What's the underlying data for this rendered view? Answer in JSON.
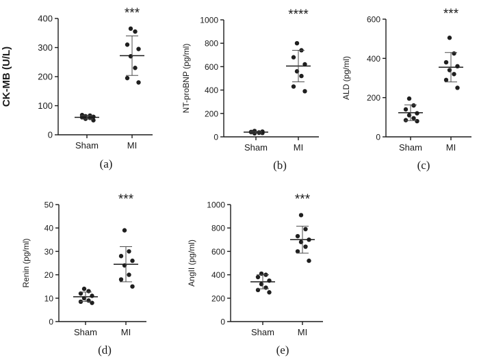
{
  "chart_data": [
    {
      "panel": "a",
      "caption": "(a)",
      "type": "scatter",
      "ylabel": "CK-MB (U/L)",
      "ylim": [
        0,
        400
      ],
      "yticks": [
        0,
        100,
        200,
        300,
        400
      ],
      "categories": [
        "Sham",
        "MI"
      ],
      "significance": "***",
      "series": [
        {
          "name": "Sham",
          "values": [
            55,
            58,
            60,
            62,
            64,
            66,
            68,
            50
          ],
          "mean": 60,
          "sd": 6
        },
        {
          "name": "MI",
          "values": [
            365,
            355,
            310,
            295,
            270,
            230,
            195,
            180
          ],
          "mean": 272,
          "sd": 68
        }
      ]
    },
    {
      "panel": "b",
      "caption": "(b)",
      "type": "scatter",
      "ylabel": "NT-proBNP (pg/ml)",
      "ylim": [
        0,
        1000
      ],
      "yticks": [
        0,
        200,
        400,
        600,
        800,
        1000
      ],
      "categories": [
        "Sham",
        "MI"
      ],
      "significance": "****",
      "series": [
        {
          "name": "Sham",
          "values": [
            30,
            35,
            40,
            45,
            50,
            38,
            42,
            33
          ],
          "mean": 40,
          "sd": 7
        },
        {
          "name": "MI",
          "values": [
            800,
            740,
            680,
            620,
            560,
            520,
            430,
            390
          ],
          "mean": 605,
          "sd": 135
        }
      ]
    },
    {
      "panel": "c",
      "caption": "(c)",
      "type": "scatter",
      "ylabel": "ALD (pg/ml)",
      "ylim": [
        0,
        600
      ],
      "yticks": [
        0,
        200,
        400,
        600
      ],
      "categories": [
        "Sham",
        "MI"
      ],
      "significance": "***",
      "series": [
        {
          "name": "Sham",
          "values": [
            195,
            160,
            140,
            120,
            110,
            95,
            85,
            80
          ],
          "mean": 123,
          "sd": 40
        },
        {
          "name": "MI",
          "values": [
            505,
            425,
            380,
            360,
            340,
            320,
            290,
            250
          ],
          "mean": 355,
          "sd": 75
        }
      ]
    },
    {
      "panel": "d",
      "caption": "(d)",
      "type": "scatter",
      "ylabel": "Renin (pg/ml)",
      "ylim": [
        0,
        50
      ],
      "yticks": [
        0,
        10,
        20,
        30,
        40,
        50
      ],
      "categories": [
        "Sham",
        "MI"
      ],
      "significance": "***",
      "series": [
        {
          "name": "Sham",
          "values": [
            14,
            13,
            12,
            11,
            10,
            9,
            8.5,
            8
          ],
          "mean": 10.6,
          "sd": 2
        },
        {
          "name": "MI",
          "values": [
            39,
            30,
            28,
            26,
            24,
            20,
            18,
            15
          ],
          "mean": 24.5,
          "sd": 7.5
        }
      ]
    },
    {
      "panel": "e",
      "caption": "(e)",
      "type": "scatter",
      "ylabel": "AngII (pg/ml)",
      "ylim": [
        0,
        1000
      ],
      "yticks": [
        0,
        200,
        400,
        600,
        800,
        1000
      ],
      "categories": [
        "Sham",
        "MI"
      ],
      "significance": "***",
      "series": [
        {
          "name": "Sham",
          "values": [
            410,
            400,
            380,
            350,
            320,
            290,
            270,
            250
          ],
          "mean": 340,
          "sd": 60
        },
        {
          "name": "MI",
          "values": [
            910,
            790,
            730,
            700,
            680,
            640,
            600,
            520
          ],
          "mean": 700,
          "sd": 115
        }
      ]
    }
  ],
  "colors": {
    "ink": "#1a1a1a",
    "point": "#1f1f1f",
    "errorbar": "#4a4a4a"
  }
}
